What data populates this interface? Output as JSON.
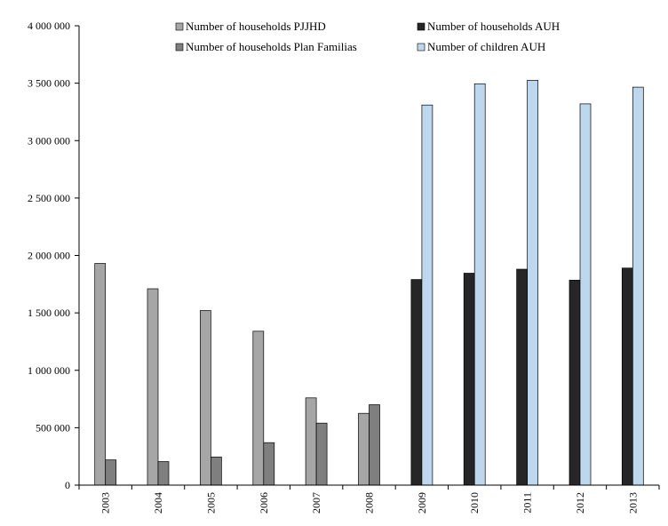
{
  "chart_data": {
    "type": "bar",
    "categories": [
      "2003",
      "2004",
      "2005",
      "2006",
      "2007",
      "2008",
      "2009",
      "2010",
      "2011",
      "2012",
      "2013"
    ],
    "series": [
      {
        "name": "Number of households PJJHD",
        "color": "#a6a6a6",
        "values": [
          1930000,
          1710000,
          1520000,
          1340000,
          760000,
          625000,
          null,
          null,
          null,
          null,
          null
        ]
      },
      {
        "name": "Number of households Plan Familias",
        "color": "#7f7f7f",
        "values": [
          220000,
          205000,
          245000,
          370000,
          540000,
          700000,
          null,
          null,
          null,
          null,
          null
        ]
      },
      {
        "name": "Number of households AUH",
        "color": "#262626",
        "values": [
          null,
          null,
          null,
          null,
          null,
          null,
          1790000,
          1845000,
          1880000,
          1785000,
          1890000
        ]
      },
      {
        "name": "Number of children AUH",
        "color": "#bdd7ee",
        "values": [
          null,
          null,
          null,
          null,
          null,
          null,
          3310000,
          3495000,
          3525000,
          3320000,
          3465000
        ]
      }
    ],
    "ylim": [
      0,
      4000000
    ],
    "yticks": [
      0,
      500000,
      1000000,
      1500000,
      2000000,
      2500000,
      3000000,
      3500000,
      4000000
    ],
    "ytick_labels": [
      "0",
      "500 000",
      "1 000 000",
      "1 500 000",
      "2 000 000",
      "2 500 000",
      "3 000 000",
      "3 500 000",
      "4 000 000"
    ],
    "legend_placement": "top",
    "grid": false
  }
}
